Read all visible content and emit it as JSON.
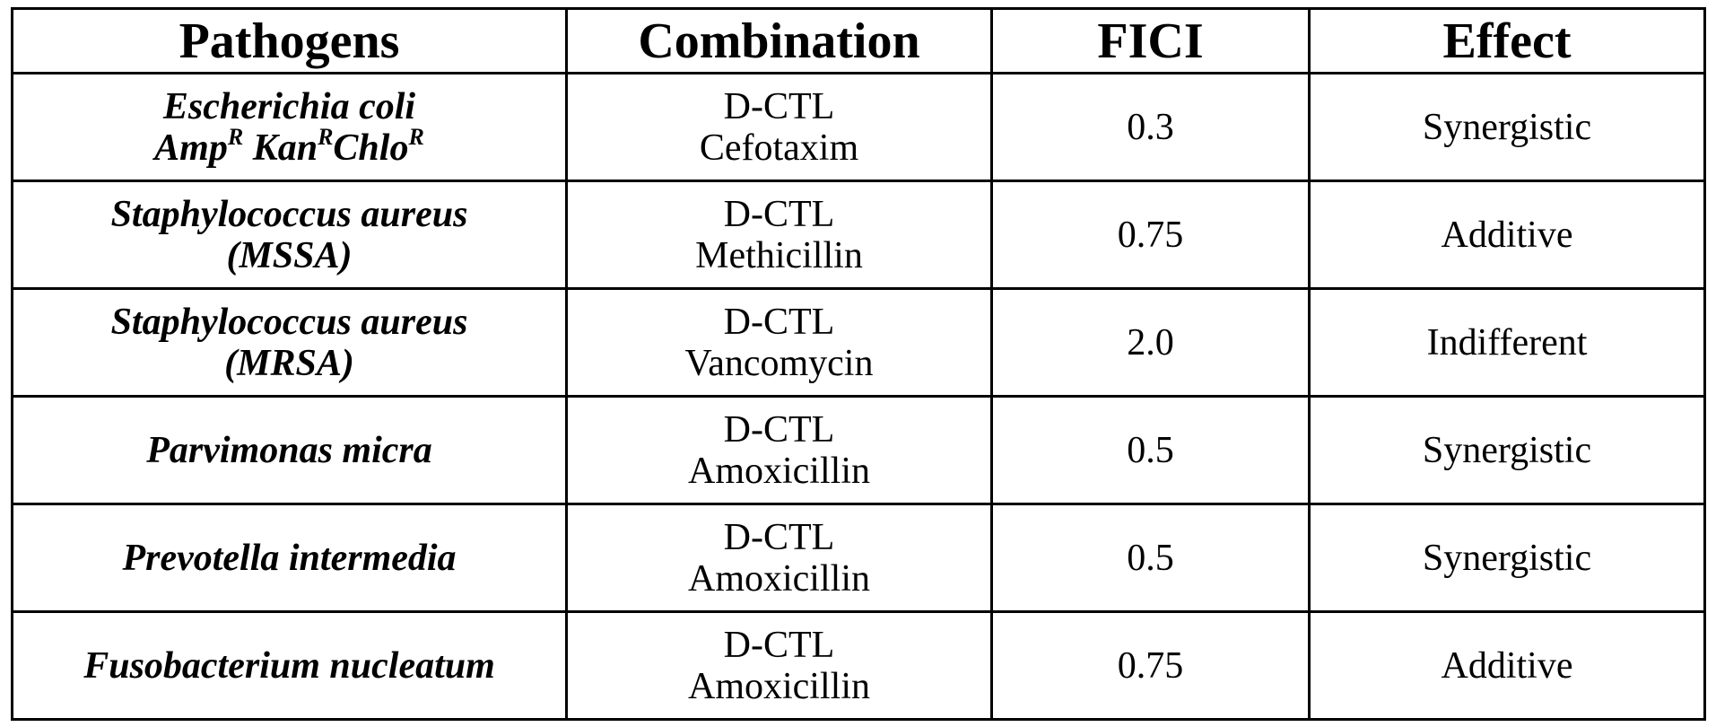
{
  "table": {
    "headers": {
      "pathogens": "Pathogens",
      "combination": "Combination",
      "fici": "FICI",
      "effect": "Effect"
    },
    "rows": [
      {
        "pathogen_line1": "Escherichia coli",
        "pathogen_line2_parts": [
          "Amp",
          "R",
          " Kan",
          "R",
          "Chlo",
          "R"
        ],
        "combination_line1": "D-CTL",
        "combination_line2": "Cefotaxim",
        "fici": "0.3",
        "effect": "Synergistic"
      },
      {
        "pathogen_line1": "Staphylococcus aureus",
        "pathogen_line2": "(MSSA)",
        "combination_line1": "D-CTL",
        "combination_line2": "Methicillin",
        "fici": "0.75",
        "effect": "Additive"
      },
      {
        "pathogen_line1": "Staphylococcus aureus",
        "pathogen_line2": "(MRSA)",
        "combination_line1": "D-CTL",
        "combination_line2": "Vancomycin",
        "fici": "2.0",
        "effect": "Indifferent"
      },
      {
        "pathogen_line1": "Parvimonas micra",
        "combination_line1": "D-CTL",
        "combination_line2": "Amoxicillin",
        "fici": "0.5",
        "effect": "Synergistic"
      },
      {
        "pathogen_line1": "Prevotella intermedia",
        "combination_line1": "D-CTL",
        "combination_line2": "Amoxicillin",
        "fici": "0.5",
        "effect": "Synergistic"
      },
      {
        "pathogen_line1": "Fusobacterium nucleatum",
        "combination_line1": "D-CTL",
        "combination_line2": "Amoxicillin",
        "fici": "0.75",
        "effect": "Additive"
      }
    ]
  }
}
